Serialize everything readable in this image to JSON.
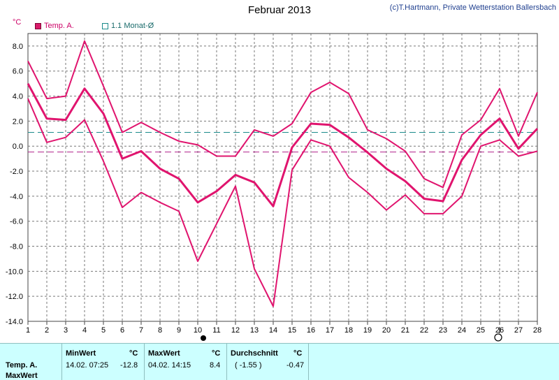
{
  "header": {
    "title": "Februar 2013",
    "credit": "(c)T.Hartmann, Private Wetterstation Ballersbach"
  },
  "colors": {
    "temp": "#e0146e",
    "avg_line": "#1a8a8a",
    "mean_line": "#b0208c",
    "grid": "#777777",
    "footer_bg": "#ccffff"
  },
  "legend": {
    "temp_label": "Temp. A.",
    "avg_label": "1.1 Monat-Ø"
  },
  "chart_data": {
    "type": "line",
    "title": "Februar 2013",
    "ylabel": "°C",
    "xlim": [
      1,
      28
    ],
    "ylim": [
      -14,
      9
    ],
    "x": [
      1,
      2,
      3,
      4,
      5,
      6,
      7,
      8,
      9,
      10,
      11,
      12,
      13,
      14,
      15,
      16,
      17,
      18,
      19,
      20,
      21,
      22,
      23,
      24,
      25,
      26,
      27,
      28
    ],
    "x_ticks": [
      "1",
      "2",
      "3",
      "4",
      "5",
      "6",
      "7",
      "8",
      "9",
      "10",
      "11",
      "12",
      "13",
      "14",
      "15",
      "16",
      "17",
      "18",
      "19",
      "20",
      "21",
      "22",
      "23",
      "24",
      "25",
      "26",
      "27",
      "28"
    ],
    "y_ticks": [
      8,
      6,
      4,
      2,
      0,
      -2,
      -4,
      -6,
      -8,
      -10,
      -12,
      -14
    ],
    "y_tick_labels": [
      "8.0",
      "6.0",
      "4.0",
      "2.0",
      "0.0",
      "-2.0",
      "-4.0",
      "-6.0",
      "-8.0",
      "-10.0",
      "-12.0",
      "-14.0"
    ],
    "series": [
      {
        "name": "Temp. A.",
        "role": "max",
        "values": [
          6.8,
          3.8,
          4.0,
          8.4,
          4.8,
          1.1,
          1.9,
          1.1,
          0.4,
          0.1,
          -0.8,
          -0.8,
          1.3,
          0.8,
          1.8,
          4.3,
          5.1,
          4.2,
          1.3,
          0.6,
          -0.4,
          -2.6,
          -3.3,
          0.9,
          2.1,
          4.6,
          0.8,
          4.3
        ]
      },
      {
        "name": "Temp. A.",
        "role": "mean",
        "values": [
          5.0,
          2.2,
          2.1,
          4.6,
          2.6,
          -1.0,
          -0.4,
          -1.8,
          -2.6,
          -4.5,
          -3.6,
          -2.3,
          -2.9,
          -4.8,
          -0.1,
          1.8,
          1.7,
          0.7,
          -0.5,
          -1.8,
          -2.8,
          -4.2,
          -4.4,
          -1.1,
          0.9,
          2.2,
          -0.2,
          1.4
        ]
      },
      {
        "name": "Temp. A.",
        "role": "min",
        "values": [
          3.8,
          0.3,
          0.7,
          2.1,
          -1.2,
          -4.9,
          -3.7,
          -4.5,
          -5.2,
          -9.2,
          -6.2,
          -3.2,
          -9.8,
          -12.8,
          -1.9,
          0.5,
          0.0,
          -2.5,
          -3.7,
          -5.1,
          -3.9,
          -5.4,
          -5.4,
          -4.0,
          0.0,
          0.5,
          -0.8,
          -0.4
        ]
      }
    ],
    "reference_lines": [
      {
        "name": "1.1 Monat-Ø",
        "value": 1.1,
        "style": "dashed",
        "color": "#1a8a8a"
      },
      {
        "value": -0.47,
        "style": "dashed",
        "color": "#b0208c"
      }
    ],
    "markers": [
      {
        "x": 10,
        "symbol": "filled-circle"
      },
      {
        "x": 26,
        "symbol": "open-circle"
      }
    ],
    "grid": true,
    "legend_position": "top-left"
  },
  "stats": {
    "col_min": "MinWert",
    "col_max": "MaxWert",
    "col_avg": "Durchschnitt",
    "unit": "°C",
    "row1_label": "Temp. A.",
    "row2_label": "MaxWert",
    "min_time": "14.02.  07:25",
    "min_value": "-12.8",
    "max_time": "04.02.  14:15",
    "max_value": "8.4",
    "avg_paren": "( -1.55 )",
    "avg_value": "-0.47"
  }
}
